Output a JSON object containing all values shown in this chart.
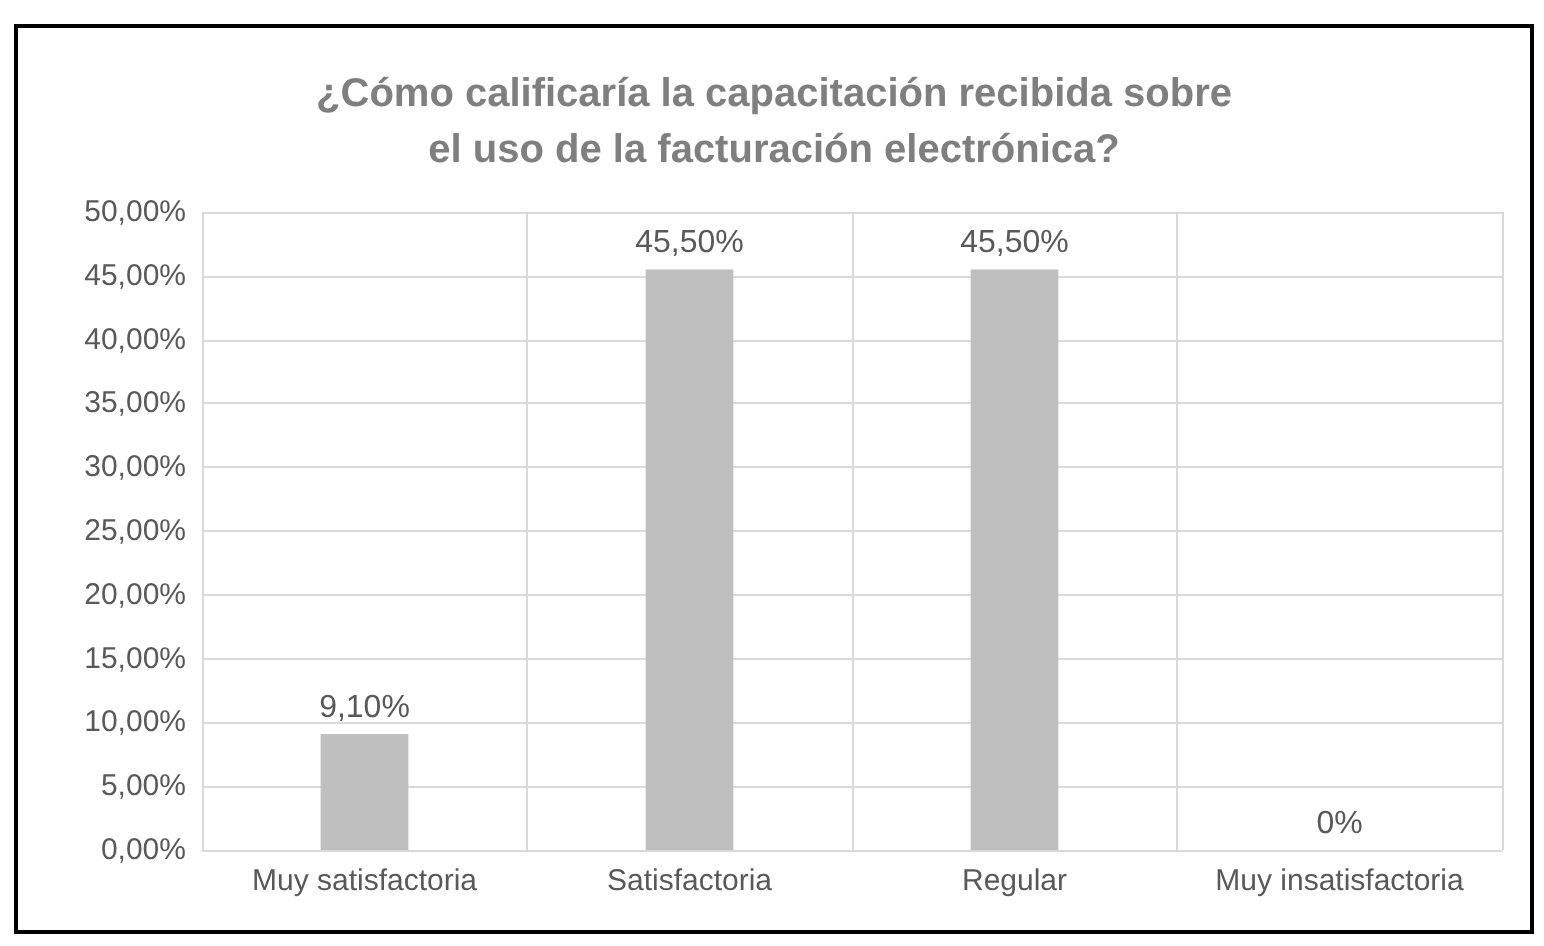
{
  "chart_data": {
    "type": "bar",
    "title": "¿Cómo calificaría la capacitación recibida sobre\nel uso de la facturación electrónica?",
    "categories": [
      "Muy satisfactoria",
      "Satisfactoria",
      "Regular",
      "Muy insatisfactoria"
    ],
    "values": [
      9.1,
      45.5,
      45.5,
      0
    ],
    "color": "#bfbfbf",
    "value_labels": [
      "9,10%",
      "45,50%",
      "45,50%",
      "0%"
    ],
    "ylim": [
      0,
      50
    ],
    "yticks": [
      {
        "value": 0,
        "label": "0,00%"
      },
      {
        "value": 5,
        "label": "5,00%"
      },
      {
        "value": 10,
        "label": "10,00%"
      },
      {
        "value": 15,
        "label": "15,00%"
      },
      {
        "value": 20,
        "label": "20,00%"
      },
      {
        "value": 25,
        "label": "25,00%"
      },
      {
        "value": 30,
        "label": "30,00%"
      },
      {
        "value": 35,
        "label": "35,00%"
      },
      {
        "value": 40,
        "label": "40,00%"
      },
      {
        "value": 45,
        "label": "45,00%"
      },
      {
        "value": 50,
        "label": "50,00%"
      }
    ],
    "grid": true
  }
}
